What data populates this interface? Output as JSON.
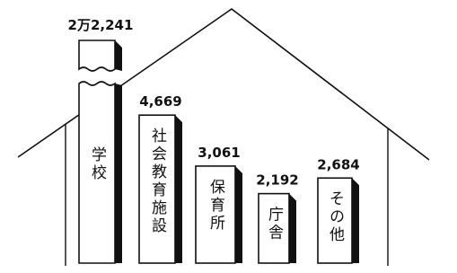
{
  "chart_data": {
    "type": "bar",
    "categories": [
      "学校",
      "社会教育施設",
      "保育所",
      "庁舎",
      "その他"
    ],
    "values": [
      22241,
      4669,
      3061,
      2192,
      2684
    ],
    "value_labels": [
      "2万2,241",
      "4,669",
      "3,061",
      "2,192",
      "2,684"
    ],
    "color": "#ffffff"
  }
}
